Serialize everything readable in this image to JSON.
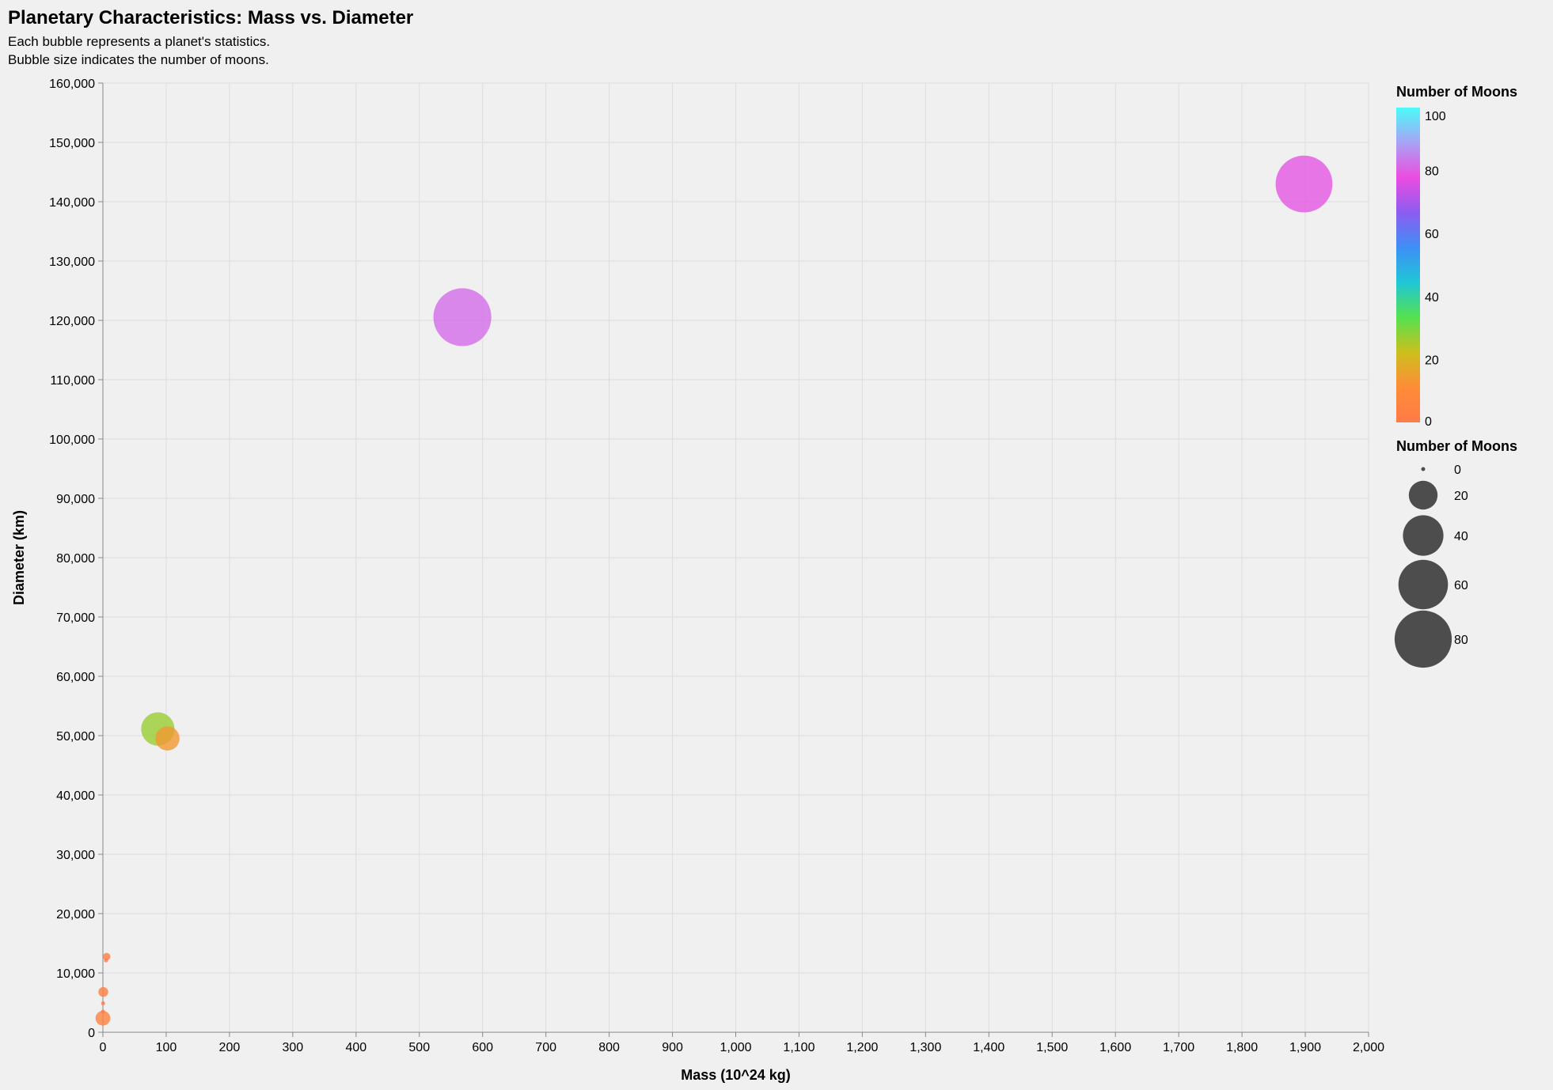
{
  "chart_data": {
    "type": "scatter",
    "title": "Planetary Characteristics: Mass vs. Diameter",
    "subtitle": [
      "Each bubble represents a planet's statistics.",
      "Bubble size indicates the number of moons."
    ],
    "xlabel": "Mass (10^24 kg)",
    "ylabel": "Diameter (km)",
    "xlim": [
      0,
      2000
    ],
    "ylim": [
      0,
      160000
    ],
    "x_ticks": [
      0,
      100,
      200,
      300,
      400,
      500,
      600,
      700,
      800,
      900,
      1000,
      1100,
      1200,
      1300,
      1400,
      1500,
      1600,
      1700,
      1800,
      1900,
      2000
    ],
    "x_tick_labels": [
      "0",
      "100",
      "200",
      "300",
      "400",
      "500",
      "600",
      "700",
      "800",
      "900",
      "1,000",
      "1,100",
      "1,200",
      "1,300",
      "1,400",
      "1,500",
      "1,600",
      "1,700",
      "1,800",
      "1,900",
      "2,000"
    ],
    "y_ticks": [
      0,
      10000,
      20000,
      30000,
      40000,
      50000,
      60000,
      70000,
      80000,
      90000,
      100000,
      110000,
      120000,
      130000,
      140000,
      150000,
      160000
    ],
    "y_tick_labels": [
      "0",
      "10,000",
      "20,000",
      "30,000",
      "40,000",
      "50,000",
      "60,000",
      "70,000",
      "80,000",
      "90,000",
      "100,000",
      "110,000",
      "120,000",
      "130,000",
      "140,000",
      "150,000",
      "160,000"
    ],
    "grid": true,
    "points": [
      {
        "mass": 0.33,
        "diameter": 4879,
        "moons": 0
      },
      {
        "mass": 4.87,
        "diameter": 12104,
        "moons": 0
      },
      {
        "mass": 5.97,
        "diameter": 12756,
        "moons": 1
      },
      {
        "mass": 0.073,
        "diameter": 3475,
        "moons": 0
      },
      {
        "mass": 0.642,
        "diameter": 6792,
        "moons": 2
      },
      {
        "mass": 1898,
        "diameter": 142984,
        "moons": 79
      },
      {
        "mass": 568,
        "diameter": 120536,
        "moons": 82
      },
      {
        "mass": 86.8,
        "diameter": 51118,
        "moons": 27
      },
      {
        "mass": 102,
        "diameter": 49528,
        "moons": 14
      },
      {
        "mass": 0.0146,
        "diameter": 2370,
        "moons": 5
      }
    ],
    "legend": {
      "color_title": "Number of Moons",
      "color_ticks": [
        0,
        20,
        40,
        60,
        80,
        100
      ],
      "color_domain": [
        0,
        100
      ],
      "color_stops": [
        "#ff7b47",
        "#ff8c38",
        "#cdbf1c",
        "#55e24f",
        "#1fc7d6",
        "#3e8ff5",
        "#8c5cf2",
        "#ec4ce0",
        "#a9a3f5",
        "#4cfaf9"
      ],
      "size_title": "Number of Moons",
      "size_values": [
        0,
        20,
        40,
        60,
        80
      ],
      "placement": "right"
    },
    "mark_opacity": 0.8
  }
}
